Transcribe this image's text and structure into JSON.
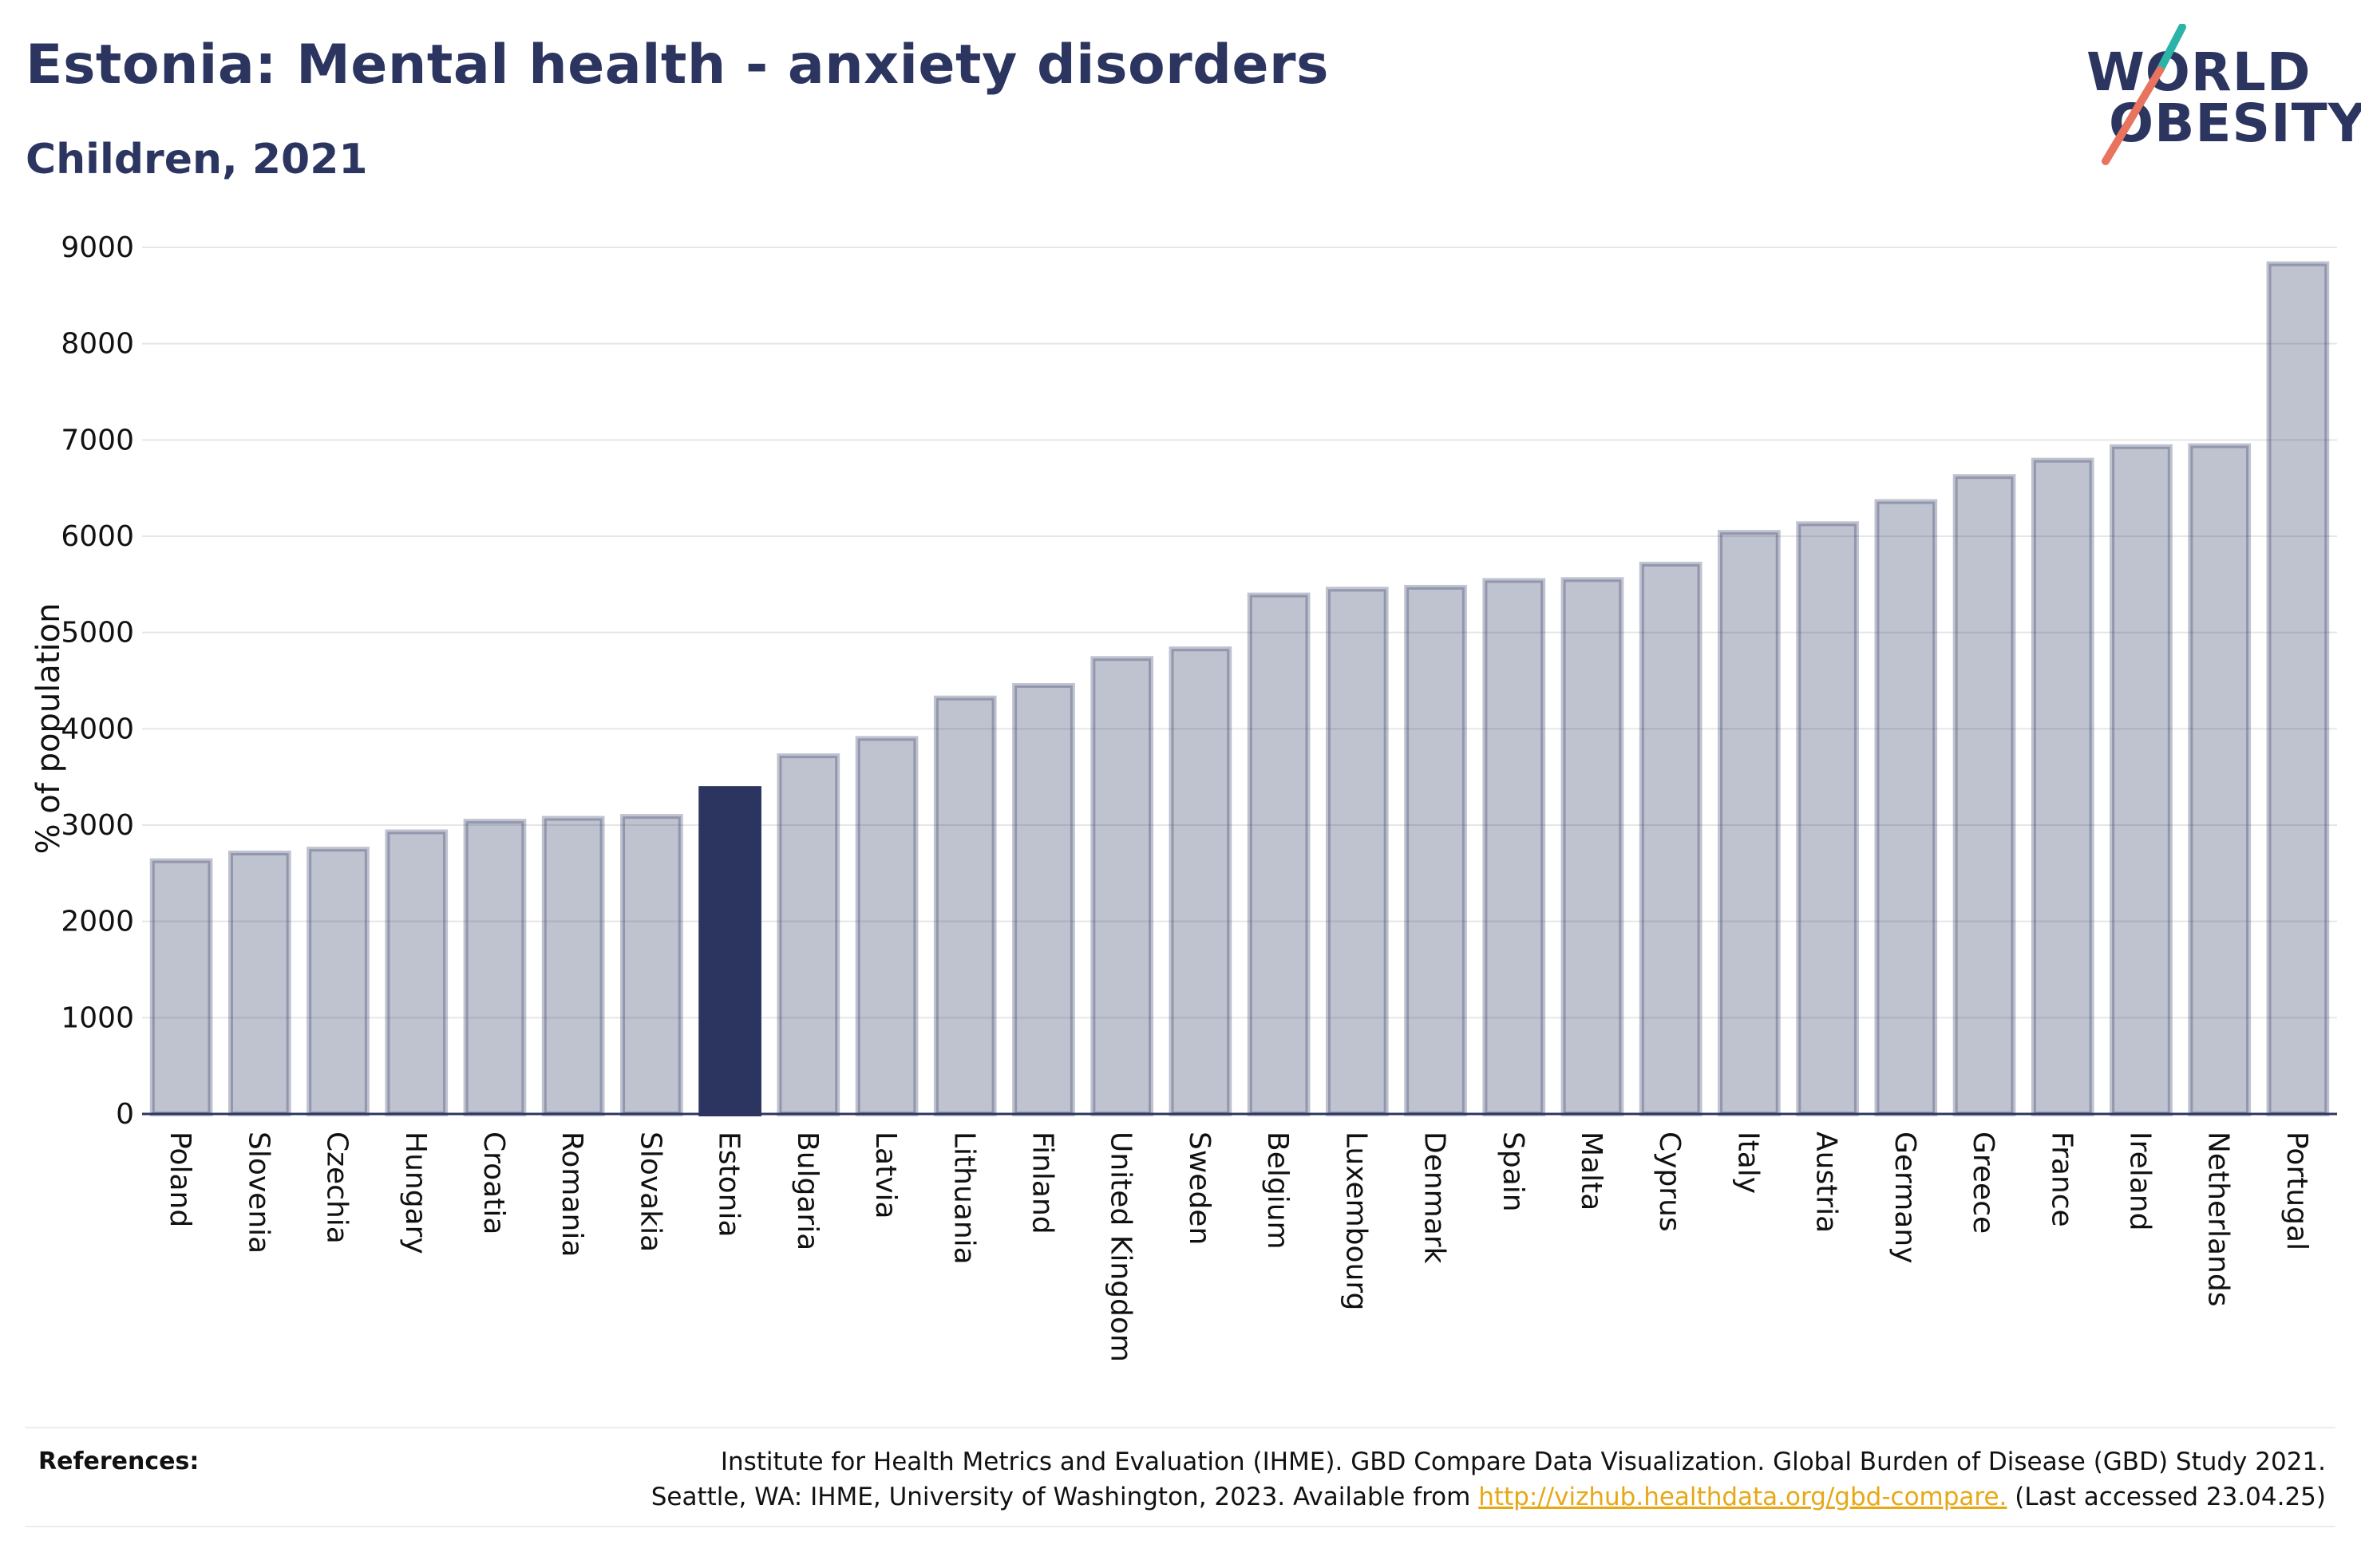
{
  "header": {
    "title": "Estonia: Mental health - anxiety disorders",
    "subtitle": "Children, 2021"
  },
  "logo": {
    "line1": "WORLD",
    "line2": "OBESITY"
  },
  "chart_data": {
    "type": "bar",
    "title": "Estonia: Mental health - anxiety disorders",
    "subtitle": "Children, 2021",
    "ylabel": "% of population",
    "xlabel": "",
    "ylim": [
      0,
      9000
    ],
    "yticks": [
      0,
      1000,
      2000,
      3000,
      4000,
      5000,
      6000,
      7000,
      8000,
      9000
    ],
    "grid": true,
    "highlight": "Estonia",
    "categories": [
      "Poland",
      "Slovenia",
      "Czechia",
      "Hungary",
      "Croatia",
      "Romania",
      "Slovakia",
      "Estonia",
      "Bulgaria",
      "Latvia",
      "Lithuania",
      "Finland",
      "United Kingdom",
      "Sweden",
      "Belgium",
      "Luxembourg",
      "Denmark",
      "Spain",
      "Malta",
      "Cyprus",
      "Italy",
      "Austria",
      "Germany",
      "Greece",
      "France",
      "Ireland",
      "Netherlands",
      "Portugal"
    ],
    "values": [
      2630,
      2710,
      2750,
      2930,
      3040,
      3070,
      3090,
      3380,
      3720,
      3900,
      4320,
      4450,
      4730,
      4830,
      5390,
      5450,
      5470,
      5540,
      5550,
      5710,
      6040,
      6130,
      6360,
      6620,
      6790,
      6930,
      6940,
      8830
    ],
    "colors": {
      "bar": "#2b3560",
      "bar_fill_opacity": 0.3,
      "highlight": "#2b3560"
    }
  },
  "references": {
    "label": "References:",
    "line1": "Institute for Health Metrics and Evaluation (IHME). GBD Compare Data Visualization. Global Burden of Disease (GBD) Study 2021.",
    "line2_before": "Seattle, WA: IHME, University of Washington, 2023. Available from",
    "link": "http://vizhub.healthdata.org/gbd-compare.",
    "line2_after": "(Last accessed 23.04.25)"
  }
}
